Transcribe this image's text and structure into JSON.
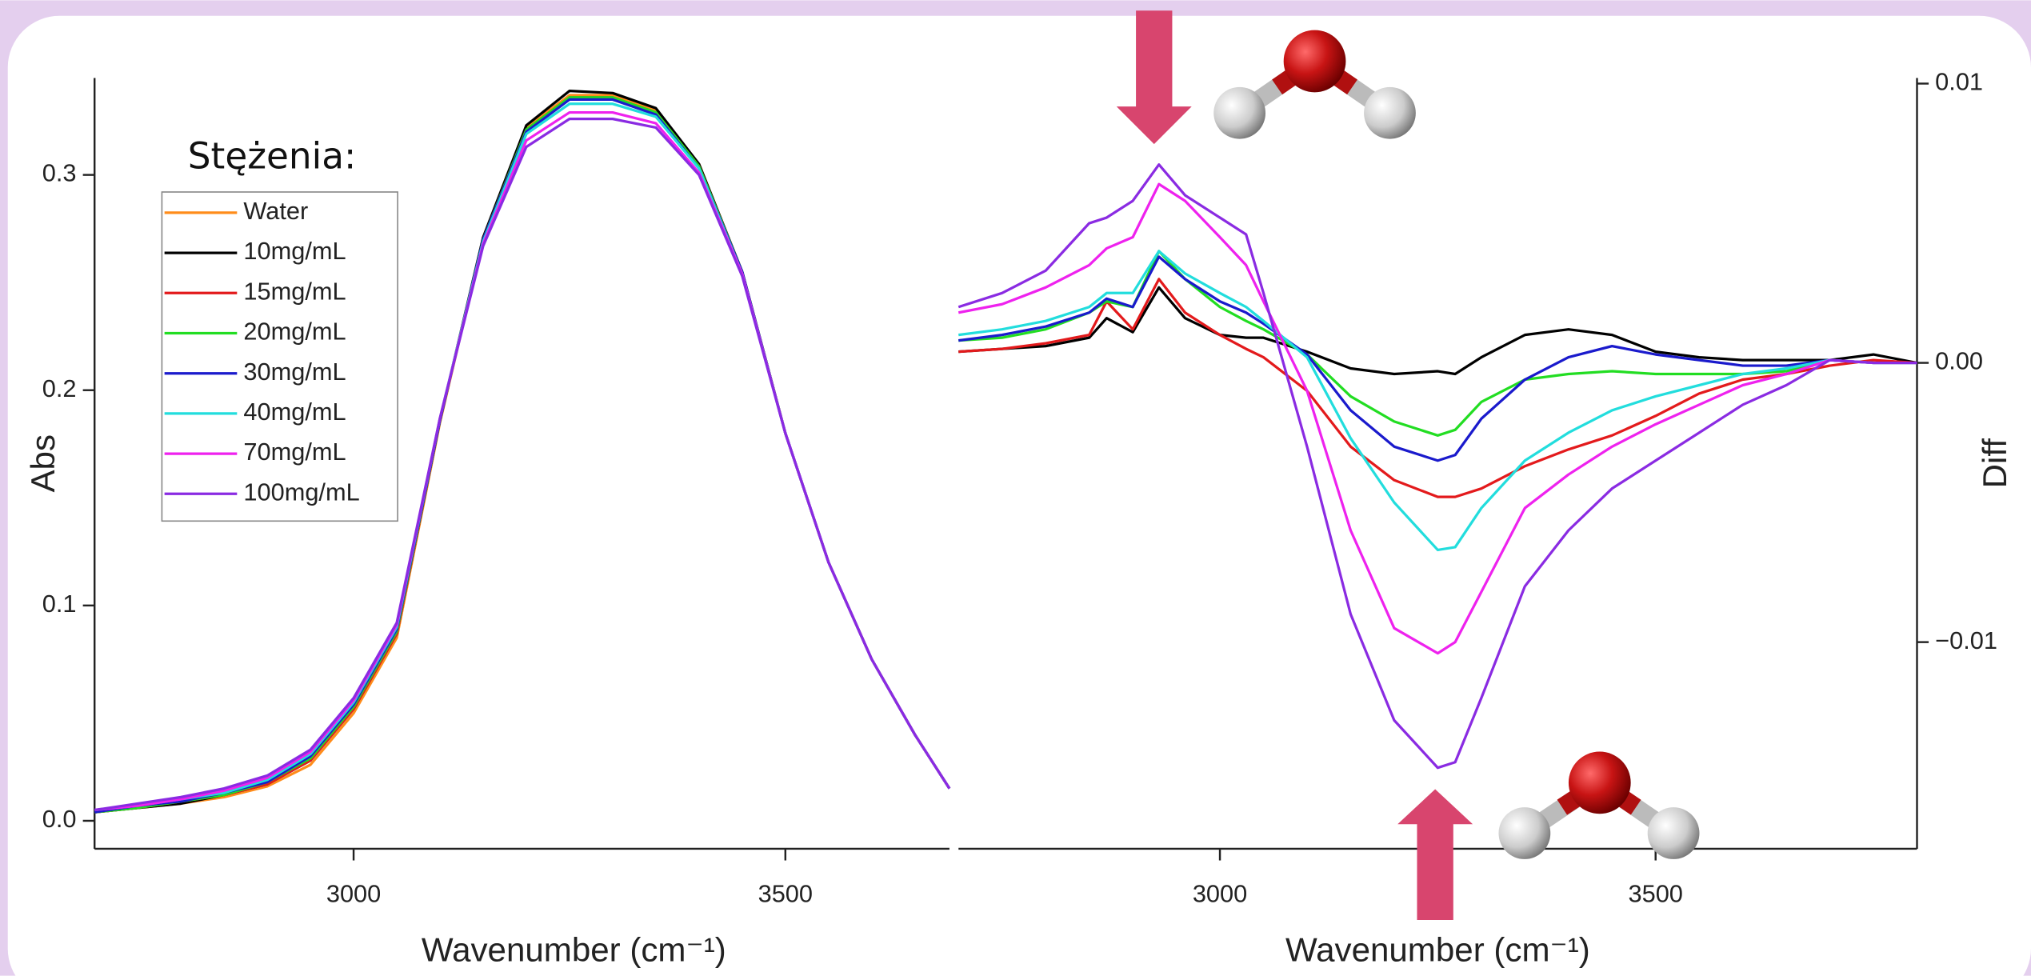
{
  "chart_data": [
    {
      "type": "line",
      "x_label": "Wavenumber (cm⁻¹)",
      "y_label": "Abs",
      "legend_title": "Stężenia:",
      "legend": "upper left",
      "y_side": "left",
      "x": [
        2700,
        2750,
        2800,
        2850,
        2900,
        2950,
        3000,
        3050,
        3100,
        3150,
        3200,
        3250,
        3300,
        3350,
        3400,
        3450,
        3500,
        3550,
        3600,
        3650,
        3690
      ],
      "xlim": [
        2700,
        3690
      ],
      "xticks": [
        3000,
        3500
      ],
      "ylim": [
        -0.013,
        0.345
      ],
      "yticks": [
        {
          "value": 0,
          "label": "0.0"
        },
        0.1,
        0.2,
        0.3
      ],
      "series": [
        {
          "name": "Water",
          "color": "#ff8c1a",
          "values": [
            0.004,
            0.006,
            0.008,
            0.011,
            0.016,
            0.026,
            0.05,
            0.085,
            0.185,
            0.27,
            0.322,
            0.337,
            0.337,
            0.33,
            0.305,
            0.255,
            0.18,
            0.12,
            0.075,
            0.04,
            0.015
          ]
        },
        {
          "name": "10mg/mL",
          "color": "#000000",
          "values": [
            0.004,
            0.006,
            0.008,
            0.012,
            0.017,
            0.028,
            0.052,
            0.087,
            0.186,
            0.271,
            0.323,
            0.339,
            0.338,
            0.331,
            0.305,
            0.255,
            0.18,
            0.12,
            0.075,
            0.04,
            0.015
          ]
        },
        {
          "name": "15mg/mL",
          "color": "#e31a1c",
          "values": [
            0.004,
            0.006,
            0.009,
            0.012,
            0.017,
            0.028,
            0.052,
            0.087,
            0.186,
            0.27,
            0.321,
            0.336,
            0.336,
            0.329,
            0.304,
            0.255,
            0.18,
            0.12,
            0.075,
            0.04,
            0.015
          ]
        },
        {
          "name": "20mg/mL",
          "color": "#22dd22",
          "values": [
            0.004,
            0.006,
            0.009,
            0.012,
            0.018,
            0.029,
            0.053,
            0.088,
            0.186,
            0.27,
            0.321,
            0.336,
            0.336,
            0.329,
            0.304,
            0.255,
            0.18,
            0.12,
            0.075,
            0.04,
            0.015
          ]
        },
        {
          "name": "30mg/mL",
          "color": "#1a1acc",
          "values": [
            0.004,
            0.007,
            0.009,
            0.013,
            0.018,
            0.03,
            0.054,
            0.089,
            0.186,
            0.27,
            0.32,
            0.335,
            0.335,
            0.328,
            0.303,
            0.255,
            0.18,
            0.12,
            0.075,
            0.04,
            0.015
          ]
        },
        {
          "name": "40mg/mL",
          "color": "#22dddd",
          "values": [
            0.005,
            0.007,
            0.01,
            0.013,
            0.019,
            0.031,
            0.055,
            0.09,
            0.187,
            0.269,
            0.319,
            0.333,
            0.333,
            0.327,
            0.303,
            0.254,
            0.18,
            0.12,
            0.075,
            0.04,
            0.015
          ]
        },
        {
          "name": "70mg/mL",
          "color": "#ee22ee",
          "values": [
            0.005,
            0.007,
            0.01,
            0.014,
            0.02,
            0.032,
            0.056,
            0.091,
            0.187,
            0.268,
            0.316,
            0.329,
            0.329,
            0.324,
            0.301,
            0.254,
            0.18,
            0.12,
            0.075,
            0.04,
            0.015
          ]
        },
        {
          "name": "100mg/mL",
          "color": "#8a2be2",
          "values": [
            0.005,
            0.008,
            0.011,
            0.015,
            0.021,
            0.033,
            0.057,
            0.092,
            0.187,
            0.267,
            0.313,
            0.326,
            0.326,
            0.322,
            0.3,
            0.253,
            0.18,
            0.12,
            0.075,
            0.04,
            0.015
          ]
        }
      ]
    },
    {
      "type": "line",
      "x_label": "Wavenumber (cm⁻¹)",
      "y_label": "Diff",
      "y_side": "right",
      "x": [
        2700,
        2750,
        2800,
        2850,
        2870,
        2900,
        2930,
        2960,
        3000,
        3030,
        3050,
        3100,
        3150,
        3200,
        3250,
        3270,
        3300,
        3350,
        3400,
        3450,
        3500,
        3550,
        3600,
        3650,
        3700,
        3750,
        3800
      ],
      "xlim": [
        2700,
        3800
      ],
      "xticks": [
        3000,
        3500
      ],
      "ylim": [
        -0.0174,
        0.0102
      ],
      "yticks": [
        {
          "value": -0.01,
          "label": "−0.01"
        },
        {
          "value": 0,
          "label": "0.00"
        },
        0.01
      ],
      "series": [
        {
          "color": "#000000",
          "values": [
            0.0004,
            0.0005,
            0.0006,
            0.0009,
            0.0016,
            0.0011,
            0.0027,
            0.0016,
            0.001,
            0.0009,
            0.0009,
            0.0004,
            -0.0002,
            -0.0004,
            -0.0003,
            -0.0004,
            0.0002,
            0.001,
            0.0012,
            0.001,
            0.0004,
            0.0002,
            0.0001,
            0.0001,
            0.0001,
            0.0003,
            0.0
          ]
        },
        {
          "color": "#e31a1c",
          "values": [
            0.0004,
            0.0005,
            0.0007,
            0.001,
            0.0022,
            0.0012,
            0.003,
            0.0018,
            0.001,
            0.0005,
            0.0002,
            -0.001,
            -0.003,
            -0.0042,
            -0.0048,
            -0.0048,
            -0.0045,
            -0.0037,
            -0.0031,
            -0.0026,
            -0.0019,
            -0.0011,
            -0.0006,
            -0.0004,
            -0.0001,
            0.0001,
            0.0
          ]
        },
        {
          "color": "#22dd22",
          "values": [
            0.0008,
            0.0009,
            0.0012,
            0.0018,
            0.0022,
            0.002,
            0.004,
            0.003,
            0.002,
            0.0015,
            0.0012,
            0.0003,
            -0.0012,
            -0.0021,
            -0.0026,
            -0.0024,
            -0.0014,
            -0.0006,
            -0.0004,
            -0.0003,
            -0.0004,
            -0.0004,
            -0.0004,
            -0.0003,
            0.0001,
            0.0,
            0.0
          ]
        },
        {
          "color": "#1a1acc",
          "values": [
            0.0008,
            0.001,
            0.0013,
            0.0018,
            0.0023,
            0.002,
            0.0038,
            0.003,
            0.0022,
            0.0018,
            0.0014,
            0.0003,
            -0.0017,
            -0.003,
            -0.0035,
            -0.0033,
            -0.002,
            -0.0006,
            0.0002,
            0.0006,
            0.0003,
            0.0001,
            -0.0001,
            -0.0001,
            0.0001,
            0.0,
            0.0
          ]
        },
        {
          "color": "#22dddd",
          "values": [
            0.001,
            0.0012,
            0.0015,
            0.002,
            0.0025,
            0.0025,
            0.004,
            0.0032,
            0.0025,
            0.002,
            0.0015,
            0.0002,
            -0.0027,
            -0.005,
            -0.0067,
            -0.0066,
            -0.0052,
            -0.0035,
            -0.0025,
            -0.0017,
            -0.0012,
            -0.0008,
            -0.0004,
            -0.0002,
            0.0001,
            0.0,
            0.0
          ]
        },
        {
          "color": "#ee22ee",
          "values": [
            0.0018,
            0.0021,
            0.0027,
            0.0035,
            0.0041,
            0.0045,
            0.0064,
            0.0058,
            0.0045,
            0.0035,
            0.0022,
            -0.001,
            -0.006,
            -0.0095,
            -0.0104,
            -0.01,
            -0.0082,
            -0.0052,
            -0.004,
            -0.003,
            -0.0022,
            -0.0015,
            -0.0008,
            -0.0004,
            0.0001,
            0.0,
            0.0
          ]
        },
        {
          "color": "#8a2be2",
          "values": [
            0.002,
            0.0025,
            0.0033,
            0.005,
            0.0052,
            0.0058,
            0.0071,
            0.006,
            0.0052,
            0.0046,
            0.0025,
            -0.003,
            -0.009,
            -0.0128,
            -0.0145,
            -0.0143,
            -0.012,
            -0.008,
            -0.006,
            -0.0045,
            -0.0035,
            -0.0025,
            -0.0015,
            -0.0008,
            0.0001,
            0.0,
            0.0
          ]
        }
      ]
    }
  ]
}
